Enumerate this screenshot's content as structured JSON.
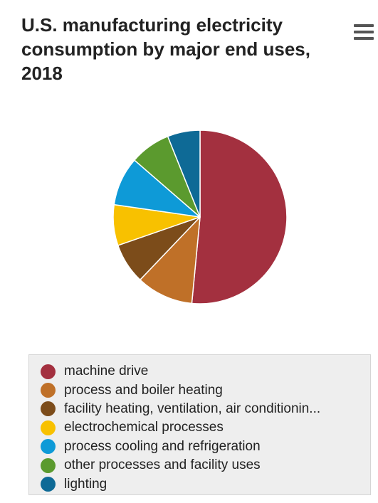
{
  "chart_data": {
    "type": "pie",
    "title": "U.S. manufacturing electricity consumption by major end uses, 2018",
    "slices": [
      {
        "label": "machine drive",
        "value": 51,
        "color": "#a3303f"
      },
      {
        "label": "process and boiler heating",
        "value": 10.5,
        "color": "#bf7028"
      },
      {
        "label": "facility heating, ventilation, air conditionin...",
        "value": 7.5,
        "color": "#7c4c1a"
      },
      {
        "label": "electrochemical processes",
        "value": 7.5,
        "color": "#f8c100"
      },
      {
        "label": "process cooling and refrigeration",
        "value": 9,
        "color": "#0e9ad7"
      },
      {
        "label": "other processes and facility uses",
        "value": 7.5,
        "color": "#5b9a2e"
      },
      {
        "label": "lighting",
        "value": 6,
        "color": "#0e6a96"
      }
    ],
    "legend_position": "bottom"
  },
  "menu": {
    "icon": "hamburger-menu-icon"
  }
}
